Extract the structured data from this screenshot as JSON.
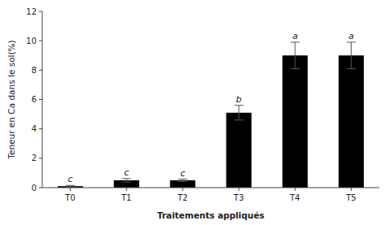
{
  "chart_data": {
    "type": "bar",
    "categories": [
      "T0",
      "T1",
      "T2",
      "T3",
      "T4",
      "T5"
    ],
    "values": [
      0.1,
      0.5,
      0.5,
      5.1,
      9.0,
      9.0
    ],
    "errors": [
      0.05,
      0.12,
      0.08,
      0.5,
      0.9,
      0.9
    ],
    "annotations": [
      "c",
      "c",
      "c",
      "b",
      "a",
      "a"
    ],
    "color": "#000000",
    "ylabel": "Teneur en Ca dans le sol(%)",
    "xlabel": "Traitements appliqués",
    "ylim": [
      0,
      12
    ],
    "yticks": [
      0,
      2,
      4,
      6,
      8,
      10,
      12
    ],
    "grid": false
  }
}
